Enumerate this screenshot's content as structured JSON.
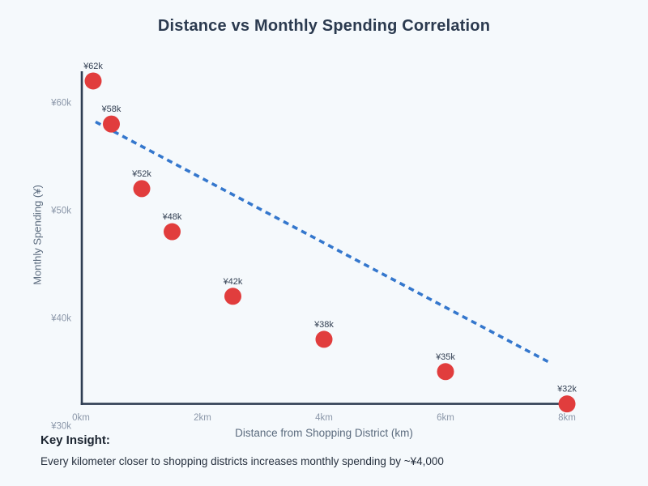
{
  "title": "Distance vs Monthly Spending Correlation",
  "chart_data": {
    "type": "scatter",
    "title": "Distance vs Monthly Spending Correlation",
    "xlabel": "Distance from Shopping District (km)",
    "ylabel": "Monthly Spending (¥)",
    "xlim": [
      0,
      8
    ],
    "ylim": [
      31.9,
      62.9
    ],
    "grid": false,
    "legend": "none",
    "x_ticks": [
      {
        "value": 0,
        "label": "0km"
      },
      {
        "value": 2,
        "label": "2km"
      },
      {
        "value": 4,
        "label": "4km"
      },
      {
        "value": 6,
        "label": "6km"
      },
      {
        "value": 8,
        "label": "8km"
      }
    ],
    "y_ticks": [
      {
        "value": 60,
        "label": "¥60k"
      },
      {
        "value": 50,
        "label": "¥50k"
      },
      {
        "value": 40,
        "label": "¥40k"
      },
      {
        "value": 30,
        "label": "¥30k"
      }
    ],
    "points": [
      {
        "x": 0.2,
        "y": 62,
        "label": "¥62k"
      },
      {
        "x": 0.5,
        "y": 58,
        "label": "¥58k"
      },
      {
        "x": 1.0,
        "y": 52,
        "label": "¥52k"
      },
      {
        "x": 1.5,
        "y": 48,
        "label": "¥48k"
      },
      {
        "x": 2.5,
        "y": 42,
        "label": "¥42k"
      },
      {
        "x": 4.0,
        "y": 38,
        "label": "¥38k"
      },
      {
        "x": 6.0,
        "y": 35,
        "label": "¥35k"
      },
      {
        "x": 8.0,
        "y": 32,
        "label": "¥32k"
      }
    ],
    "trend_line": {
      "x1": 0.24,
      "y1": 58.2,
      "x2": 7.73,
      "y2": 35.8,
      "style": "dashed"
    },
    "colors": {
      "point": "#e13d3d",
      "trend": "#3477cd",
      "axis": "#2e3d52",
      "tick_label": "#8b97a9",
      "point_label": "#323f52",
      "background": "#f5f9fc"
    }
  },
  "footer": {
    "heading": "Key Insight:",
    "text": "Every kilometer closer to shopping districts increases monthly spending by ~¥4,000"
  }
}
